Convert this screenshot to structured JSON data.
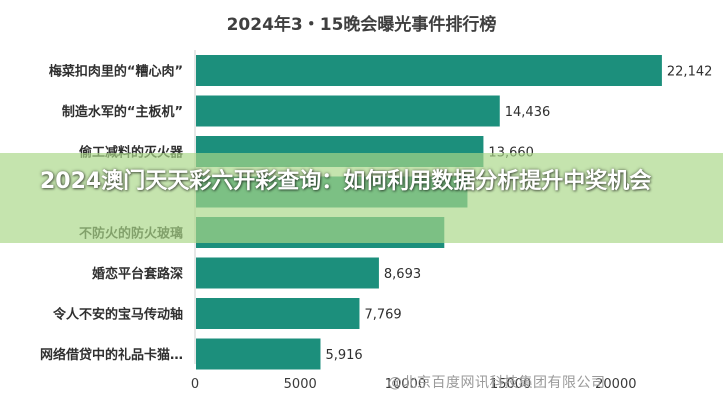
{
  "chart_data": {
    "type": "bar",
    "orientation": "horizontal",
    "title": "2024年3・15晚会曝光事件排行榜",
    "categories": [
      "梅菜扣肉里的“糟心肉”",
      "制造水军的“主板机”",
      "偷工减料的灭火器",
      "",
      "不防火的防火玻璃",
      "婚恋平台套路深",
      "令人不安的宝马传动轴",
      "网络借贷中的礼品卡猫…"
    ],
    "values": [
      22142,
      14436,
      13660,
      12900,
      11800,
      8693,
      7769,
      5916
    ],
    "data_labels": [
      "22,142",
      "14,436",
      "13,660",
      "",
      "",
      "8,693",
      "7,769",
      "5,916"
    ],
    "x_ticks": [
      "0",
      "5000",
      "10000",
      "15000",
      "20000"
    ],
    "xlim": [
      0,
      24000
    ],
    "bar_color": "#1c8f7c",
    "grid": false
  },
  "overlay": {
    "headline": "2024澳门天天彩六开彩查询：如何利用数据分析提升中奖机会"
  },
  "watermark": {
    "text": "@北京百度网讯科技集团有限公司"
  }
}
